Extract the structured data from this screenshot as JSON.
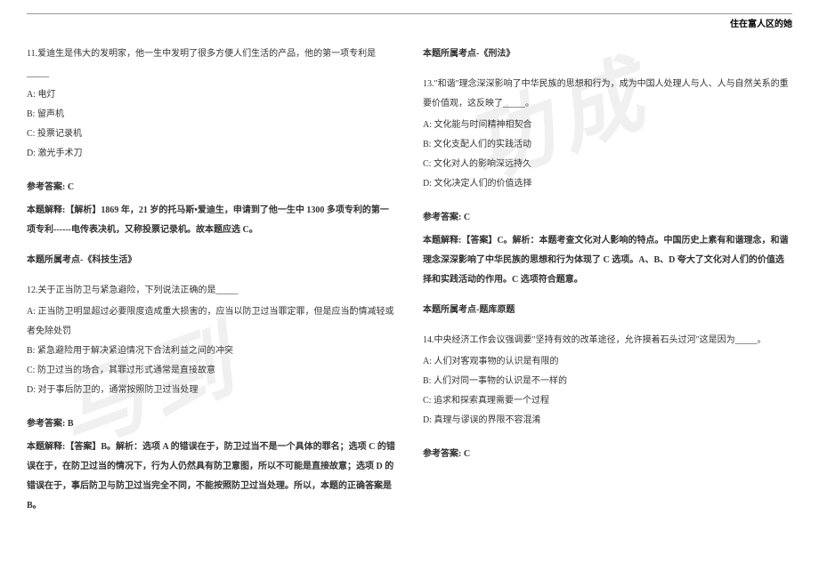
{
  "header": {
    "text": "住在富人区的她"
  },
  "watermarks": {
    "w1": "功成",
    "w2": "马到"
  },
  "leftColumn": {
    "q11": {
      "title": "11.爱迪生是伟大的发明家，他一生中发明了很多方便人们生活的产品，他的第一项专利是_____",
      "optA": "A: 电灯",
      "optB": "B: 留声机",
      "optC": "C: 投票记录机",
      "optD": "D: 激光手术刀",
      "answer": "参考答案: C",
      "explanation": "本题解释:【解析】1869 年，21 岁的托马斯•爱迪生，申请到了他一生中 1300 多项专利的第一项专利------电传表决机，又称投票记录机。故本题应选 C。",
      "topic": "本题所属考点-《科技生活》"
    },
    "q12": {
      "title": "12.关于正当防卫与紧急避险，下列说法正确的是_____",
      "optA": "A: 正当防卫明显超过必要限度造成重大损害的，应当以防卫过当罪定罪，但是应当酌情减轻或者免除处罚",
      "optB": "B: 紧急避险用于解决紧迫情况下合法利益之间的冲突",
      "optC": "C: 防卫过当的场合，其罪过形式通常是直接故意",
      "optD": "D: 对于事后防卫的，通常按照防卫过当处理",
      "answer": "参考答案: B",
      "explanation": "本题解释:【答案】B。解析：选项 A 的错误在于，防卫过当不是一个具体的罪名；选项 C 的错误在于，在防卫过当的情况下，行为人仍然具有防卫意图，所以不可能是直接故意；选项 D 的错误在于，事后防卫与防卫过当完全不同，不能按照防卫过当处理。所以，本题的正确答案是 B。"
    }
  },
  "rightColumn": {
    "q12topic": "本题所属考点-《刑法》",
    "q13": {
      "title": "13.\"和谐\"理念深深影响了中华民族的思想和行为，成为中国人处理人与人、人与自然关系的重要价值观，这反映了_____。",
      "optA": "A: 文化能与时间精神相契合",
      "optB": "B: 文化支配人们的实践活动",
      "optC": "C: 文化对人的影响深远持久",
      "optD": "D: 文化决定人们的价值选择",
      "answer": "参考答案: C",
      "explanation": "本题解释:【答案】C。解析：本题考查文化对人影响的特点。中国历史上素有和谐理念，和谐理念深深影响了中华民族的思想和行为体现了 C 选项。A、B、D 夸大了文化对人们的价值选择和实践活动的作用。C 选项符合题意。",
      "topic": "本题所属考点-题库原题"
    },
    "q14": {
      "title": "14.中央经济工作会议强调要\"坚持有效的改革途径，允许摸着石头过河\"这是因为_____。",
      "optA": "A: 人们对客观事物的认识是有限的",
      "optB": "B: 人们对同一事物的认识是不一样的",
      "optC": "C: 追求和探索真理需要一个过程",
      "optD": "D: 真理与谬误的界限不容混淆",
      "answer": "参考答案: C"
    }
  }
}
